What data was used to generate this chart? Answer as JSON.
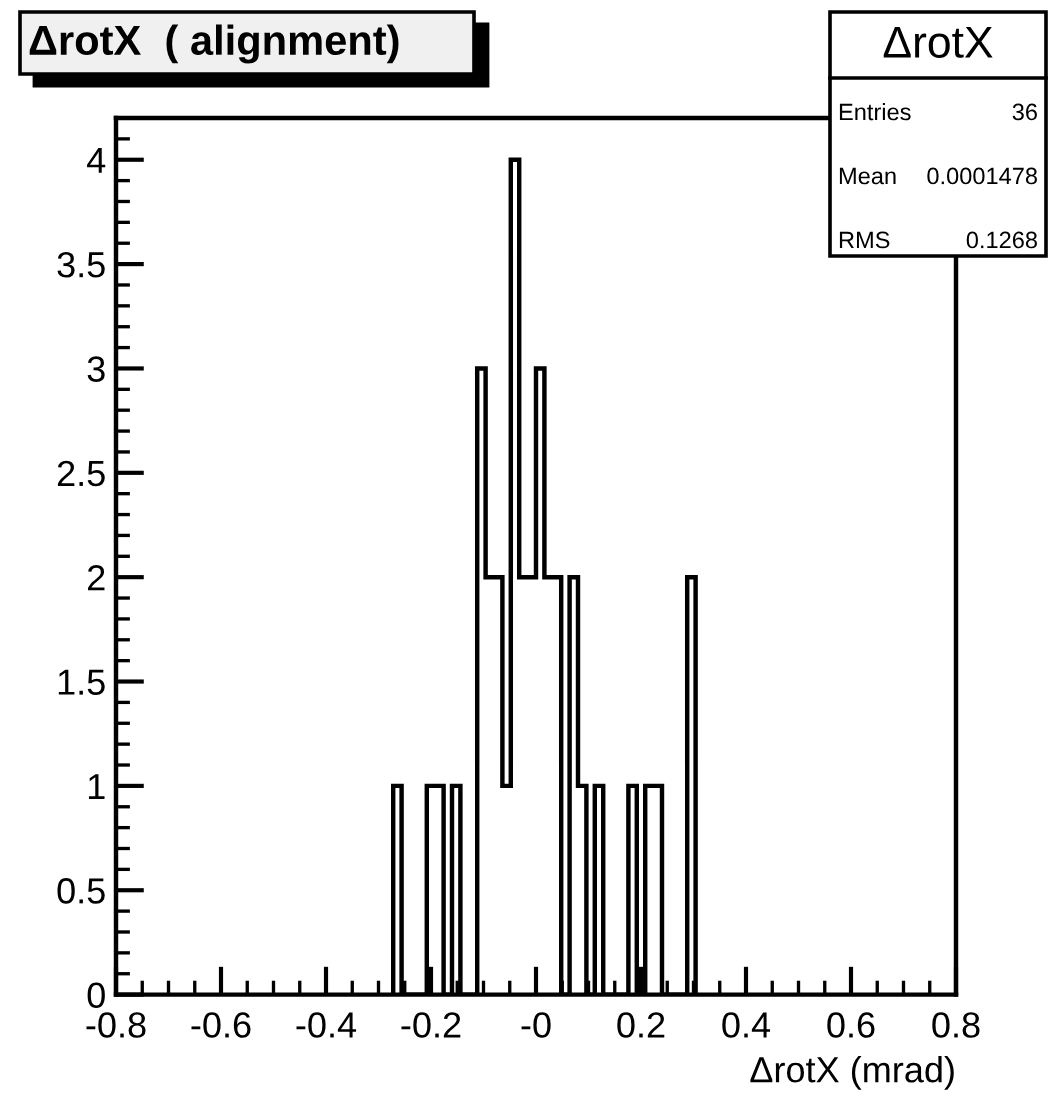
{
  "chart_data": {
    "type": "histogram",
    "title": "ΔrotX  ( alignment)",
    "xlabel": "ΔrotX (mrad)",
    "bins": [
      -0.272,
      -0.256,
      -0.24,
      -0.224,
      -0.208,
      -0.192,
      -0.176,
      -0.16,
      -0.144,
      -0.128,
      -0.112,
      -0.096,
      -0.08,
      -0.064,
      -0.048,
      -0.032,
      -0.016,
      0.0,
      0.016,
      0.032,
      0.048,
      0.064,
      0.08,
      0.096,
      0.112,
      0.128,
      0.144,
      0.16,
      0.176,
      0.192,
      0.208,
      0.224,
      0.24,
      0.256,
      0.272,
      0.288,
      0.304
    ],
    "values": [
      1,
      0,
      0,
      0,
      1,
      1,
      0,
      1,
      0,
      0,
      3,
      2,
      2,
      1,
      4,
      2,
      2,
      3,
      2,
      2,
      0,
      2,
      1,
      0,
      1,
      0,
      0,
      0,
      1,
      0,
      1,
      1,
      0,
      0,
      0,
      2
    ],
    "color": "#000000",
    "xlim": [
      -0.8,
      0.8
    ],
    "ylim": [
      0,
      4.2
    ],
    "xticks": [
      -0.8,
      -0.6,
      -0.4,
      -0.2,
      {
        "value": 0,
        "label": "-0"
      },
      0.2,
      0.4,
      0.6,
      0.8
    ],
    "yticks": [
      0,
      0.5,
      1,
      1.5,
      2,
      2.5,
      3,
      3.5,
      4
    ],
    "grid": false,
    "legend": false,
    "annotations": [
      "ΔrotX",
      "Entries 36",
      "Mean 0.0001478",
      "RMS 0.1268"
    ]
  }
}
